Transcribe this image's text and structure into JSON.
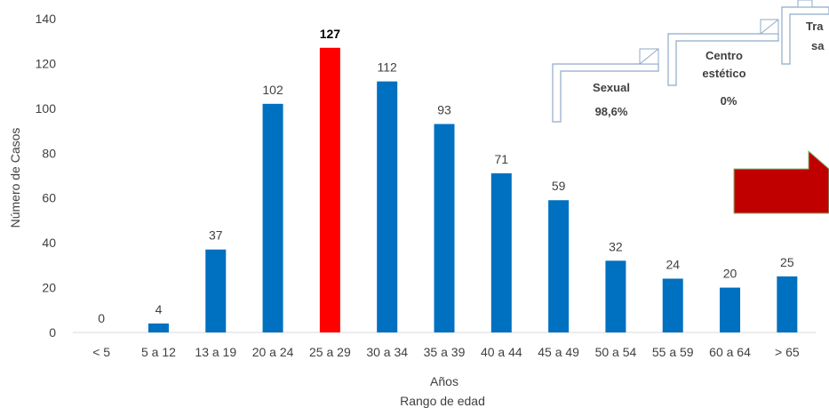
{
  "chart_data": {
    "type": "bar",
    "categories": [
      "< 5",
      "5 a 12",
      "13 a 19",
      "20 a 24",
      "25 a 29",
      "30 a 34",
      "35 a 39",
      "40 a 44",
      "45 a 49",
      "50 a 54",
      "55 a 59",
      "60 a 64",
      "> 65"
    ],
    "values": [
      0,
      4,
      37,
      102,
      127,
      112,
      93,
      71,
      59,
      32,
      24,
      20,
      25
    ],
    "highlight_index": 4,
    "ylim": [
      0,
      140
    ],
    "yticks": [
      0,
      20,
      40,
      60,
      80,
      100,
      120,
      140
    ],
    "xlabel": "Años",
    "xlabel2": "Rango de edad",
    "ylabel": "Número de Casos",
    "grid": false,
    "colors": {
      "bar": "#0070C0",
      "highlight": "#FF0000",
      "arrow": "#C00000"
    }
  },
  "callouts": [
    {
      "line1": "Sexual",
      "line2": "98,6%"
    },
    {
      "line1": "Centro",
      "line2": "estético",
      "line3": "0%"
    },
    {
      "line1": "Tra",
      "line2": "sa"
    }
  ]
}
